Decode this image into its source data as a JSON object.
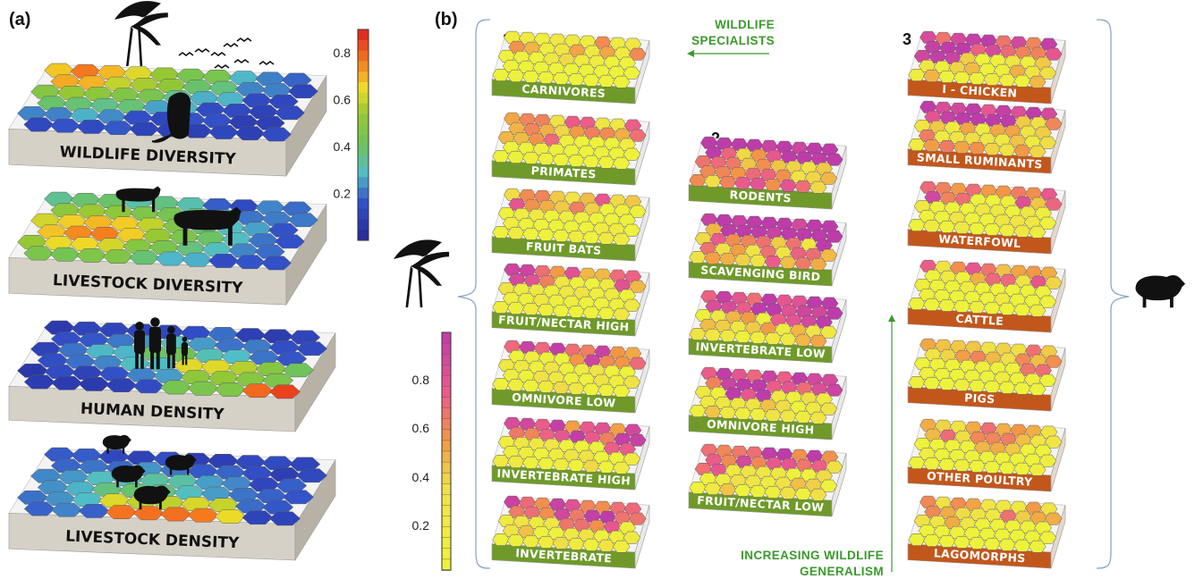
{
  "panel_a": {
    "label": "(a)",
    "layers": [
      {
        "name": "WILDLIFE DIVERSITY",
        "icon": "heron-and-flock-and-rodent-icon",
        "pattern": "wildlife"
      },
      {
        "name": "LIVESTOCK DIVERSITY",
        "icon": "goat-and-cow-icon",
        "pattern": "livestockdiv"
      },
      {
        "name": "HUMAN DENSITY",
        "icon": "family-icon",
        "pattern": "human"
      },
      {
        "name": "LIVESTOCK DENSITY",
        "icon": "pigs-icon",
        "pattern": "livestockden"
      }
    ],
    "colorbar": {
      "ticks": [
        "0.8",
        "0.6",
        "0.4",
        "0.2"
      ],
      "scale": "jet"
    }
  },
  "panel_b": {
    "label": "(b)",
    "colorbar": {
      "ticks": [
        "0.8",
        "0.6",
        "0.4",
        "0.2"
      ],
      "scale": "yellow-magenta"
    },
    "columns": [
      {
        "number": "1",
        "layers": [
          "CARNIVORES",
          "PRIMATES",
          "FRUIT BATS",
          "FRUIT/NECTAR HIGH",
          "OMNIVORE LOW",
          "INVERTEBRATE HIGH",
          "INVERTEBRATE"
        ]
      },
      {
        "number": "2",
        "layers": [
          "RODENTS",
          "SCAVENGING BIRD",
          "INVERTEBRATE LOW",
          "OMNIVORE HIGH",
          "FRUIT/NECTAR LOW"
        ]
      },
      {
        "number": "3",
        "layers": [
          "I - CHICKEN",
          "SMALL RUMINANTS",
          "WATERFOWL",
          "CATTLE",
          "PIGS",
          "OTHER POULTRY",
          "LAGOMORPHS"
        ]
      }
    ],
    "annotations": {
      "top_line1": "WILDLIFE",
      "top_line2": "SPECIALISTS",
      "bottom_line1": "INCREASING WILDLIFE",
      "bottom_line2": "GENERALISM"
    },
    "left_icon": "heron-icon",
    "right_icon": "pig-icon"
  },
  "colors": {
    "wildlife_base": "#7a9c2a",
    "livestock_base": "#c2571c",
    "grey_base": "#c9c4b9",
    "arrow_green": "#3a9a2c",
    "bracket": "#8aa6c8"
  }
}
